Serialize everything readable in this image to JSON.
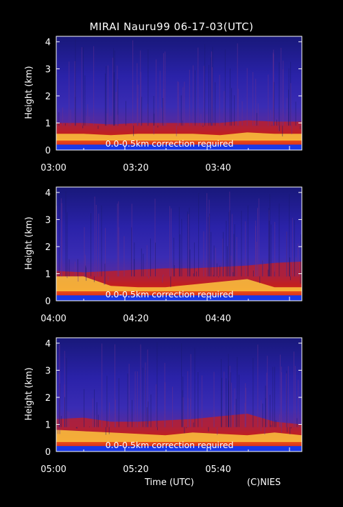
{
  "title": "MIRAI Nauru99 06-17-03(UTC)",
  "xlabel": "Time (UTC)",
  "credit": "(C)NIES",
  "colors": {
    "background": "#000000",
    "low_signal": "#1a1ac8",
    "mid_signal": "#c81e1e",
    "high_signal": "#ffd040",
    "saturated": "#ffffff"
  },
  "chart_data": [
    {
      "type": "heatmap",
      "ylabel": "Height (km)",
      "yticks": [
        0,
        1,
        2,
        3,
        4
      ],
      "ylim": [
        0,
        4.2
      ],
      "xticks": [
        "03:00",
        "03:20",
        "03:40"
      ],
      "annotation": "0.0-0.5km correction required",
      "cloud_base_km": [
        0.6,
        0.6,
        0.55,
        0.6,
        0.6,
        0.6,
        0.55,
        0.65,
        0.6,
        0.6
      ],
      "boundary_layer_top_km": [
        1.0,
        1.0,
        0.95,
        1.0,
        1.0,
        1.0,
        1.0,
        1.1,
        1.05,
        1.05
      ]
    },
    {
      "type": "heatmap",
      "ylabel": "Height (km)",
      "yticks": [
        0,
        1,
        2,
        3,
        4
      ],
      "ylim": [
        0,
        4.2
      ],
      "xticks": [
        "04:00",
        "04:20",
        "04:40"
      ],
      "annotation": "0.0-0.5km correction required",
      "cloud_base_km": [
        0.9,
        0.9,
        0.55,
        0.5,
        0.5,
        0.6,
        0.7,
        0.8,
        0.5,
        0.5
      ],
      "boundary_layer_top_km": [
        1.1,
        1.05,
        1.1,
        1.15,
        1.2,
        1.2,
        1.25,
        1.3,
        1.4,
        1.45
      ]
    },
    {
      "type": "heatmap",
      "ylabel": "Height (km)",
      "yticks": [
        0,
        1,
        2,
        3,
        4
      ],
      "ylim": [
        0,
        4.2
      ],
      "xticks": [
        "05:00",
        "05:20",
        "05:40"
      ],
      "annotation": "0.0-0.5km correction required",
      "cloud_base_km": [
        0.8,
        0.75,
        0.7,
        0.65,
        0.6,
        0.7,
        0.65,
        0.6,
        0.7,
        0.6
      ],
      "boundary_layer_top_km": [
        1.2,
        1.25,
        1.1,
        1.1,
        1.15,
        1.2,
        1.3,
        1.4,
        1.1,
        1.0
      ]
    }
  ]
}
